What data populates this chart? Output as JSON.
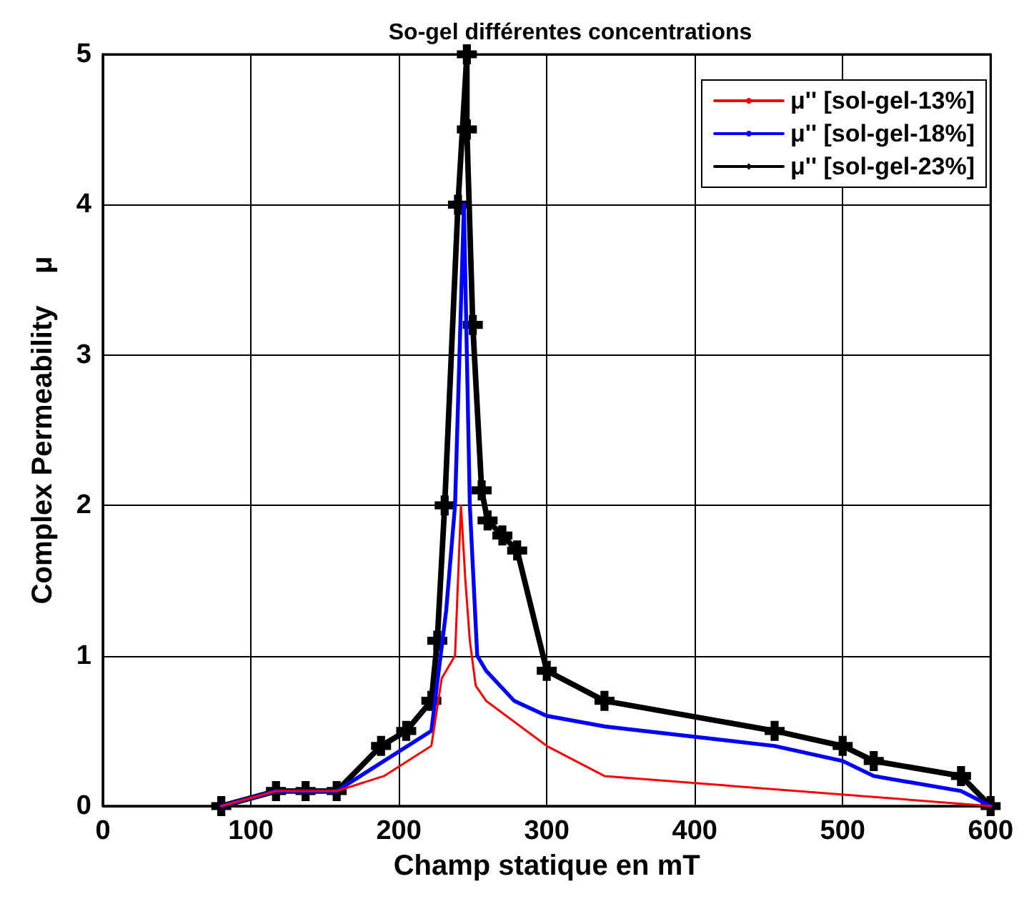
{
  "chart_data": {
    "type": "line",
    "title": "So-gel différentes concentrations",
    "xlabel": "Champ statique en mT",
    "ylabel": "Complex Permeability    μ",
    "xlim": [
      0,
      600
    ],
    "xticks": [
      0,
      100,
      200,
      300,
      400,
      500,
      600
    ],
    "ylim": [
      0,
      5
    ],
    "yticks": [
      0,
      1,
      2,
      3,
      4,
      5
    ],
    "grid": true,
    "legend": "top right",
    "line_style": "solid",
    "series": [
      {
        "name": "μ'' [sol-gel-13%]",
        "color": "#ff0000",
        "marker": "none",
        "x": [
          80,
          117,
          137,
          158,
          190,
          222,
          229,
          238,
          242,
          245,
          248,
          252,
          259,
          300,
          339,
          600
        ],
        "values": [
          0,
          0.1,
          0.1,
          0.1,
          0.2,
          0.4,
          0.85,
          1.0,
          2.0,
          1.5,
          1.1,
          0.8,
          0.7,
          0.4,
          0.2,
          0
        ]
      },
      {
        "name": "μ'' [sol-gel-18%]",
        "color": "#0000ff",
        "marker": "none",
        "x": [
          80,
          117,
          137,
          158,
          222,
          232,
          238,
          244,
          248,
          253,
          259,
          278,
          300,
          339,
          454,
          500,
          521,
          580,
          600
        ],
        "values": [
          0,
          0.1,
          0.1,
          0.1,
          0.5,
          1.3,
          2.0,
          4.0,
          2.0,
          1.0,
          0.9,
          0.7,
          0.6,
          0.53,
          0.4,
          0.3,
          0.2,
          0.1,
          0
        ]
      },
      {
        "name": "μ'' [sol-gel-23%]",
        "color": "#000000",
        "marker": "cross",
        "x": [
          80,
          117,
          137,
          158,
          188,
          205,
          222,
          226,
          231,
          240,
          246,
          246,
          250,
          256,
          260,
          270,
          280,
          300,
          339,
          454,
          500,
          521,
          580,
          600
        ],
        "values": [
          0,
          0.1,
          0.1,
          0.1,
          0.4,
          0.5,
          0.7,
          1.1,
          2,
          4,
          5,
          4.5,
          3.2,
          2.1,
          1.9,
          1.8,
          1.7,
          0.9,
          0.7,
          0.5,
          0.4,
          0.3,
          0.2,
          0
        ]
      }
    ]
  }
}
